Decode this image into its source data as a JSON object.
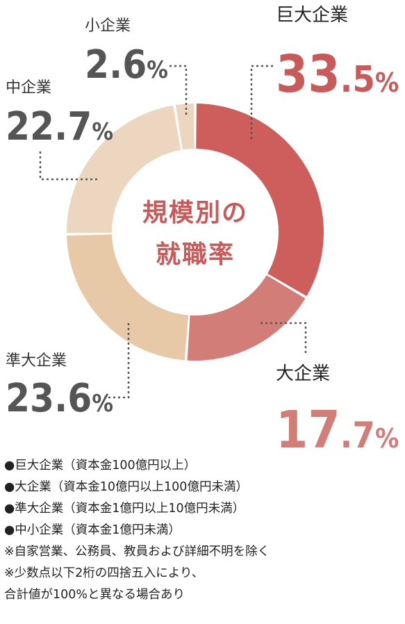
{
  "chart_data": {
    "type": "pie",
    "title": "規模別の就職率",
    "title_lines": [
      "規模別の",
      "就職率"
    ],
    "unit": "%",
    "categories": [
      "巨大企業",
      "大企業",
      "準大企業",
      "中企業",
      "小企業"
    ],
    "values": [
      33.5,
      17.7,
      23.6,
      22.7,
      2.6
    ],
    "colors": [
      "#cd5e5c",
      "#d27d78",
      "#e7c9a8",
      "#ecd6bf",
      "#ecd6bf"
    ],
    "value_colors": [
      "#c95a5a",
      "#d27d78",
      "#555555",
      "#555555",
      "#555555"
    ]
  },
  "notes": [
    "●巨大企業（資本金100億円以上）",
    "●大企業（資本金10億円以上100億円未満）",
    "●準大企業（資本金1億円以上10億円未満）",
    "●中小企業（資本金1億円未満）",
    "※自家営業、公務員、教員および詳細不明を除く",
    "※少数点以下2桁の四捨五入により、",
    "合計値が100%と異なる場合あり"
  ]
}
